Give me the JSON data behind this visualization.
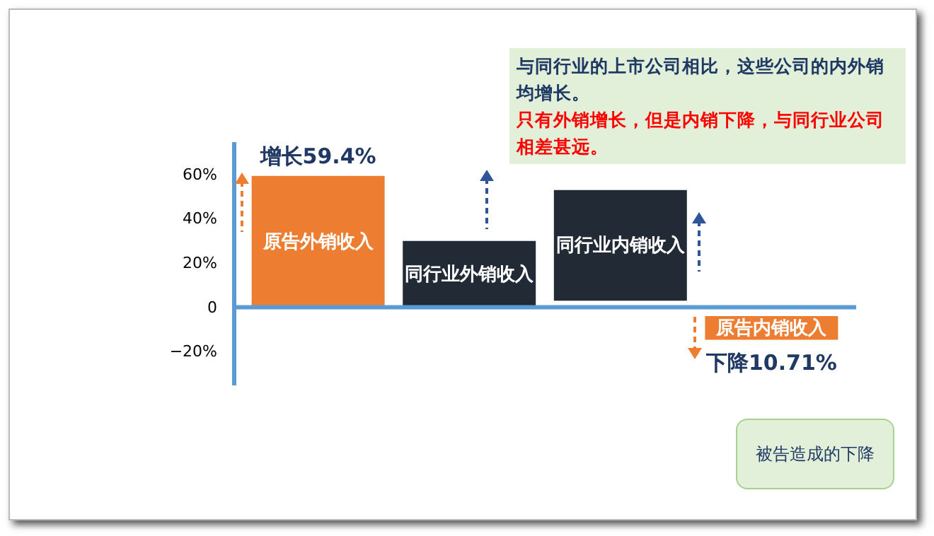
{
  "chart_data": {
    "type": "bar",
    "categories": [
      "原告外销收入",
      "同行业外销收入",
      "同行业内销收入",
      "原告内销收入"
    ],
    "values": [
      59.4,
      30,
      50,
      -10.71
    ],
    "base": [
      0,
      0,
      3,
      -4
    ],
    "colors": [
      "#ed7d31",
      "#222a35",
      "#222a35",
      "#ed7d31"
    ],
    "value_labels": [
      "增长59.4%",
      null,
      null,
      "下降10.71%"
    ],
    "ref_lines": [
      {
        "axis": "y",
        "value": 0,
        "color": "#5b9bd5"
      }
    ],
    "ylim": [
      -35,
      75
    ],
    "yticks": [
      {
        "value": -20,
        "label": "−20%"
      },
      {
        "value": 0,
        "label": "0"
      },
      {
        "value": 20,
        "label": "20%"
      },
      {
        "value": 40,
        "label": "40%"
      },
      {
        "value": 60,
        "label": "60%"
      }
    ],
    "annotations": [
      "与同行业的上市公司相比，这些公司的内外销均增长。",
      "只有外销增长，但是内销下降，与同行业公司相差甚远。",
      "被告造成的下降"
    ]
  }
}
